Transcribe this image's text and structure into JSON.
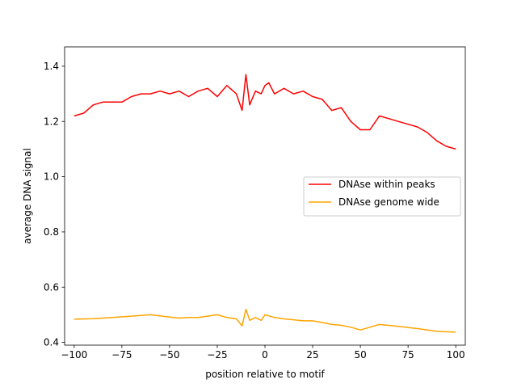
{
  "chart_data": {
    "type": "line",
    "title": "",
    "xlabel": "position relative to motif",
    "ylabel": "average DNA signal",
    "xlim": [
      -105,
      105
    ],
    "ylim": [
      0.39,
      1.47
    ],
    "x_ticks": [
      -100,
      -75,
      -50,
      -25,
      0,
      25,
      50,
      75,
      100
    ],
    "x_tick_labels": [
      "−100",
      "−75",
      "−50",
      "−25",
      "0",
      "25",
      "50",
      "75",
      "100"
    ],
    "y_ticks": [
      0.4,
      0.6,
      0.8,
      1.0,
      1.2,
      1.4
    ],
    "y_tick_labels": [
      "0.4",
      "0.6",
      "0.8",
      "1.0",
      "1.2",
      "1.4"
    ],
    "grid": false,
    "legend_position": "center-right",
    "series": [
      {
        "name": "DNAse within peaks",
        "color": "#ff0000",
        "x": [
          -100,
          -95,
          -90,
          -85,
          -80,
          -75,
          -70,
          -65,
          -60,
          -55,
          -50,
          -45,
          -40,
          -35,
          -30,
          -25,
          -20,
          -15,
          -12,
          -10,
          -8,
          -5,
          -2,
          0,
          2,
          5,
          10,
          15,
          20,
          25,
          30,
          35,
          40,
          45,
          50,
          55,
          60,
          65,
          70,
          75,
          80,
          85,
          90,
          95,
          100
        ],
        "y": [
          1.22,
          1.23,
          1.26,
          1.27,
          1.27,
          1.27,
          1.29,
          1.3,
          1.3,
          1.31,
          1.3,
          1.31,
          1.29,
          1.31,
          1.32,
          1.29,
          1.33,
          1.3,
          1.24,
          1.37,
          1.26,
          1.31,
          1.3,
          1.33,
          1.34,
          1.3,
          1.32,
          1.3,
          1.31,
          1.29,
          1.28,
          1.24,
          1.25,
          1.2,
          1.17,
          1.17,
          1.22,
          1.21,
          1.2,
          1.19,
          1.18,
          1.16,
          1.13,
          1.11,
          1.1
        ]
      },
      {
        "name": "DNAse genome wide",
        "color": "#ffa500",
        "x": [
          -100,
          -90,
          -80,
          -70,
          -60,
          -50,
          -45,
          -40,
          -35,
          -30,
          -25,
          -20,
          -15,
          -12,
          -10,
          -8,
          -5,
          -2,
          0,
          5,
          10,
          15,
          20,
          25,
          30,
          35,
          40,
          45,
          50,
          55,
          60,
          70,
          80,
          90,
          100
        ],
        "y": [
          0.484,
          0.486,
          0.49,
          0.495,
          0.5,
          0.492,
          0.488,
          0.49,
          0.49,
          0.495,
          0.5,
          0.49,
          0.485,
          0.46,
          0.52,
          0.48,
          0.49,
          0.48,
          0.5,
          0.49,
          0.485,
          0.482,
          0.478,
          0.478,
          0.472,
          0.465,
          0.462,
          0.455,
          0.445,
          0.455,
          0.465,
          0.458,
          0.45,
          0.44,
          0.437
        ]
      }
    ]
  }
}
